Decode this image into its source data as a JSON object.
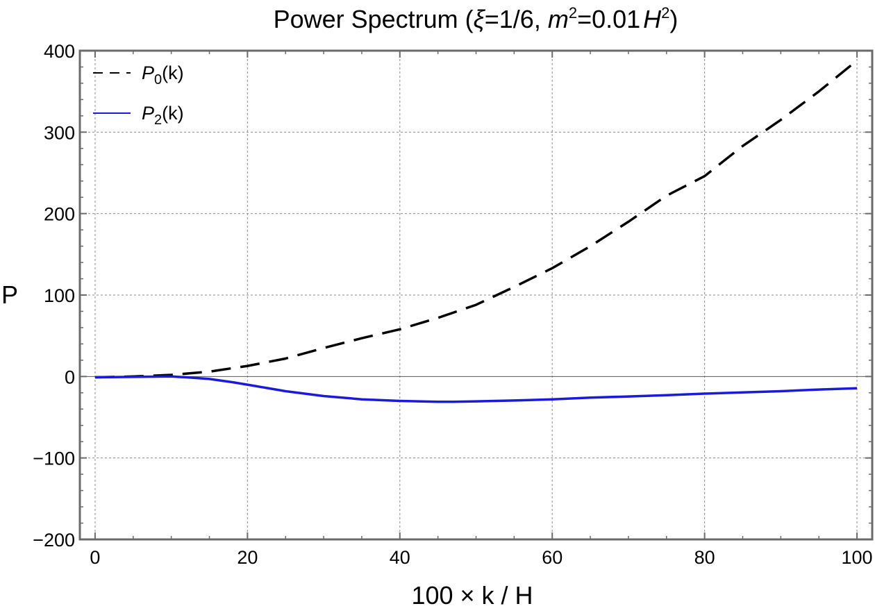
{
  "chart_data": {
    "type": "line",
    "title": {
      "prefix": "Power Spectrum (",
      "xi_symbol": "ξ",
      "xi_value": "=1/6, ",
      "m_symbol": "m",
      "m_exp": "2",
      "mid": "=0.01",
      "h_symbol": "H",
      "h_exp": "2",
      "suffix": ")"
    },
    "xlabel": "100 × k / H",
    "ylabel": "P",
    "xlim": [
      -2,
      102
    ],
    "ylim": [
      -200,
      400
    ],
    "xticks": [
      0,
      20,
      40,
      60,
      80,
      100
    ],
    "yticks": [
      -200,
      -100,
      0,
      100,
      200,
      300,
      400
    ],
    "ytick_labels": [
      "−200",
      "−100",
      "0",
      "100",
      "200",
      "300",
      "400"
    ],
    "grid": true,
    "legend_position": "top-left",
    "series": [
      {
        "name": "P0(k)",
        "label_symbol": "P",
        "label_sub": "0",
        "label_suffix": "(k)",
        "color": "#000000",
        "dash": "dashed",
        "x": [
          0,
          5,
          10,
          15,
          20,
          25,
          30,
          35,
          40,
          45,
          50,
          55,
          60,
          65,
          70,
          75,
          80,
          85,
          90,
          95,
          100
        ],
        "values": [
          -1,
          0,
          2,
          6,
          13,
          22,
          35,
          47,
          58,
          72,
          88,
          110,
          133,
          160,
          190,
          222,
          246,
          283,
          315,
          350,
          388
        ]
      },
      {
        "name": "P2(k)",
        "label_symbol": "P",
        "label_sub": "2",
        "label_suffix": "(k)",
        "color": "#1a1adb",
        "dash": "solid",
        "x": [
          0,
          5,
          10,
          12,
          15,
          18,
          20,
          25,
          30,
          35,
          40,
          45,
          47,
          50,
          55,
          60,
          65,
          70,
          75,
          80,
          85,
          90,
          95,
          100
        ],
        "values": [
          -1,
          -0.5,
          0,
          -1,
          -3,
          -7,
          -10,
          -18,
          -24,
          -28,
          -30,
          -31,
          -31,
          -30.5,
          -29.5,
          -28,
          -26,
          -24.5,
          -23,
          -21,
          -19.5,
          -18,
          -16,
          -14.5
        ]
      }
    ]
  }
}
